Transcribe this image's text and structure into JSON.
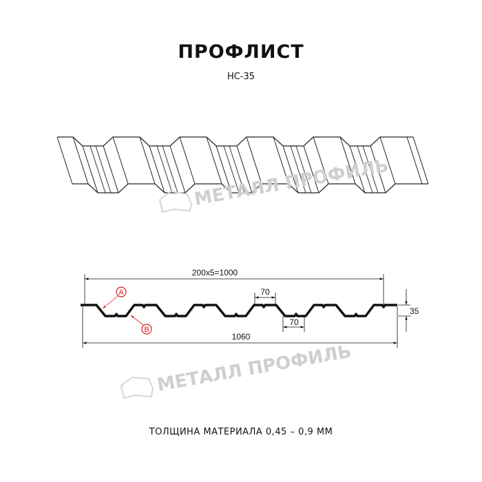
{
  "header": {
    "title": "ПРОФЛИСТ",
    "subtitle": "НС-35"
  },
  "watermark": {
    "text": "МЕТАЛЛ ПРОФИЛЬ",
    "color": "#cfcfcf"
  },
  "drawing": {
    "dimensions": {
      "pitch": "200x5=1000",
      "total_width": "1060",
      "height": "35",
      "top_flat": "70",
      "bottom_flat": "70"
    },
    "callouts": [
      {
        "label": "A"
      },
      {
        "label": "B"
      }
    ],
    "callout_color": "#d42020"
  },
  "footer": {
    "thickness": "ТОЛЩИНА МАТЕРИАЛА 0,45 – 0,9 ММ"
  }
}
